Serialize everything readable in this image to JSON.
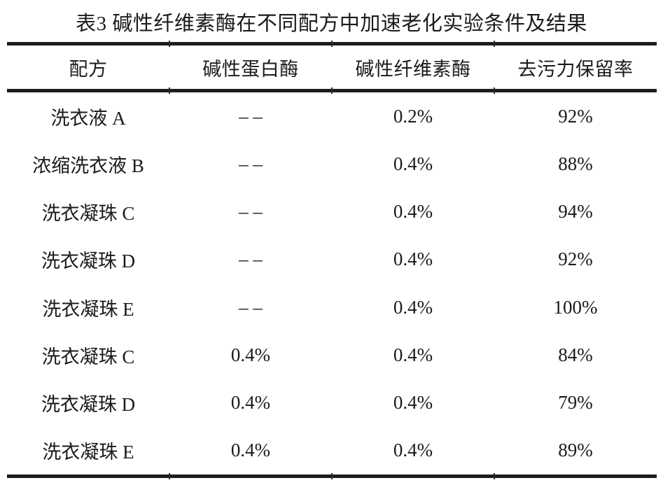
{
  "table": {
    "title": "表3 碱性纤维素酶在不同配方中加速老化实验条件及结果",
    "columns": [
      "配方",
      "碱性蛋白酶",
      "碱性纤维素酶",
      "去污力保留率"
    ],
    "rows": [
      [
        "洗衣液 A",
        "– –",
        "0.2%",
        "92%"
      ],
      [
        "浓缩洗衣液 B",
        "– –",
        "0.4%",
        "88%"
      ],
      [
        "洗衣凝珠 C",
        "– –",
        "0.4%",
        "94%"
      ],
      [
        "洗衣凝珠 D",
        "– –",
        "0.4%",
        "92%"
      ],
      [
        "洗衣凝珠 E",
        "– –",
        "0.4%",
        "100%"
      ],
      [
        "洗衣凝珠 C",
        "0.4%",
        "0.4%",
        "84%"
      ],
      [
        "洗衣凝珠 D",
        "0.4%",
        "0.4%",
        "79%"
      ],
      [
        "洗衣凝珠 E",
        "0.4%",
        "0.4%",
        "89%"
      ]
    ],
    "colors": {
      "text": "#1b1b1b",
      "rule": "#1c1c1c",
      "background": "#ffffff"
    }
  }
}
